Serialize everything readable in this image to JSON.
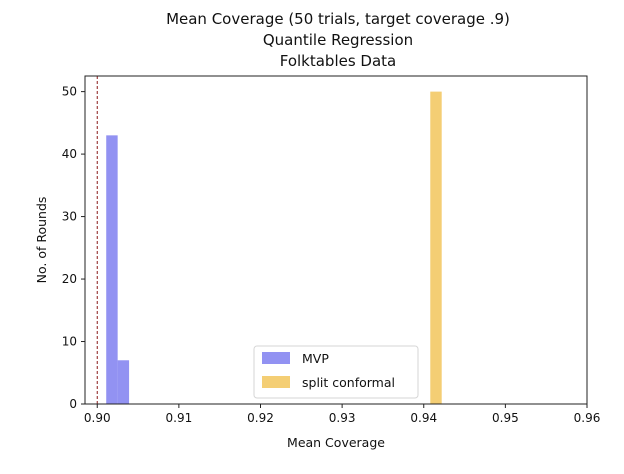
{
  "chart_data": {
    "type": "bar",
    "title": [
      "Mean Coverage (50 trials, target coverage .9)",
      "Quantile Regression",
      "Folktables Data"
    ],
    "xlabel": "Mean Coverage",
    "ylabel": "No. of Rounds",
    "xlim": [
      0.8985,
      0.96
    ],
    "ylim": [
      0,
      52.5
    ],
    "xticks": [
      "0.90",
      "0.91",
      "0.92",
      "0.93",
      "0.94",
      "0.95",
      "0.96"
    ],
    "xtick_values": [
      0.9,
      0.91,
      0.92,
      0.93,
      0.94,
      0.95,
      0.96
    ],
    "yticks": [
      "0",
      "10",
      "20",
      "30",
      "40",
      "50"
    ],
    "ytick_values": [
      0,
      10,
      20,
      30,
      40,
      50
    ],
    "target_line": {
      "x": 0.9,
      "color": "#8b1a1a",
      "style": "dashed"
    },
    "legend_position": "lower-center",
    "grid": false,
    "series": [
      {
        "name": "MVP",
        "color": "#7f7ff0",
        "bins": [
          {
            "x0": 0.9011,
            "x1": 0.9025,
            "count": 43
          },
          {
            "x0": 0.9025,
            "x1": 0.9039,
            "count": 7
          }
        ]
      },
      {
        "name": "split conformal",
        "color": "#f2c55c",
        "bins": [
          {
            "x0": 0.9408,
            "x1": 0.9422,
            "count": 50
          }
        ]
      }
    ]
  }
}
